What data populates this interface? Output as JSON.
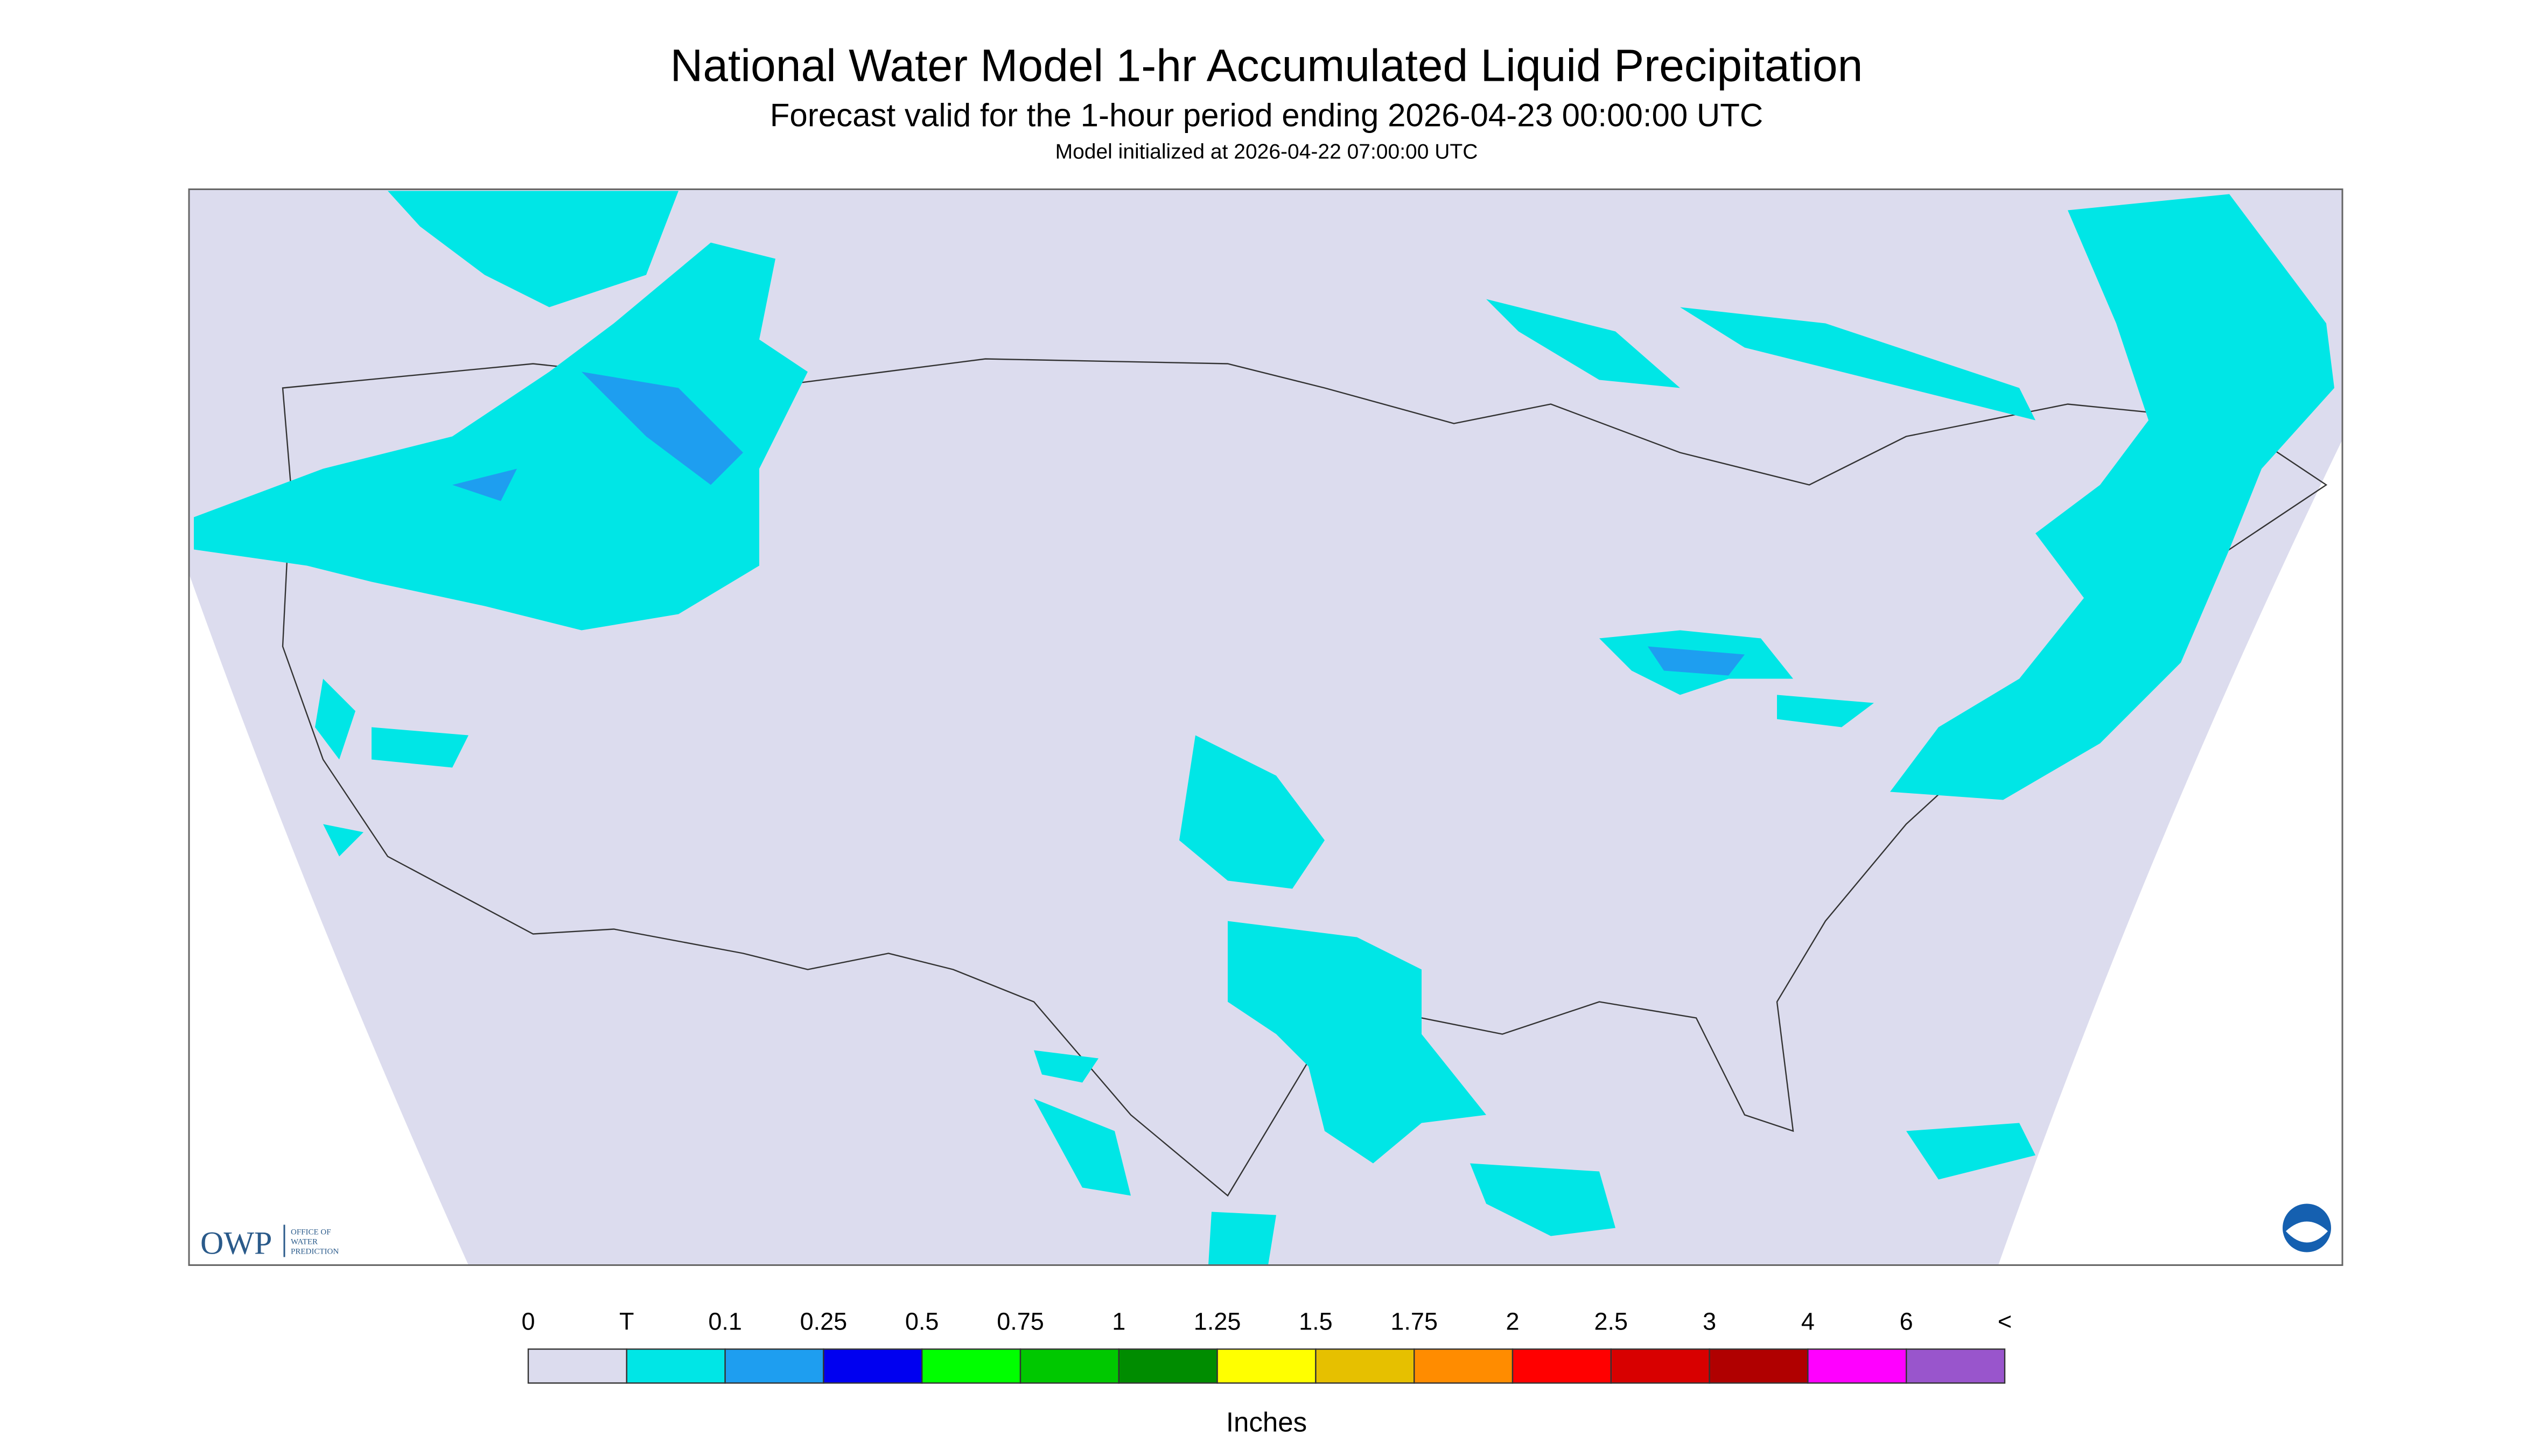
{
  "header": {
    "title": "National Water Model 1-hr Accumulated Liquid Precipitation",
    "subtitle": "Forecast valid for the 1-hour period ending 2026-04-23 00:00:00 UTC",
    "note": "Model initialized at 2026-04-22 07:00:00 UTC"
  },
  "logo": {
    "short": "OWP",
    "lines": [
      "OFFICE OF",
      "WATER",
      "PREDICTION"
    ]
  },
  "legend": {
    "labels": [
      "0",
      "T",
      "0.1",
      "0.25",
      "0.5",
      "0.75",
      "1",
      "1.25",
      "1.5",
      "1.75",
      "2",
      "2.5",
      "3",
      "4",
      "6",
      "<"
    ],
    "colors": [
      "#dcdcee",
      "#00e6e6",
      "#1e9ef0",
      "#0000f0",
      "#00ff00",
      "#00c800",
      "#008c00",
      "#ffff00",
      "#e6c000",
      "#ff8c00",
      "#ff0000",
      "#d80000",
      "#b00000",
      "#ff00ff",
      "#9955cc"
    ],
    "unit": "Inches"
  }
}
